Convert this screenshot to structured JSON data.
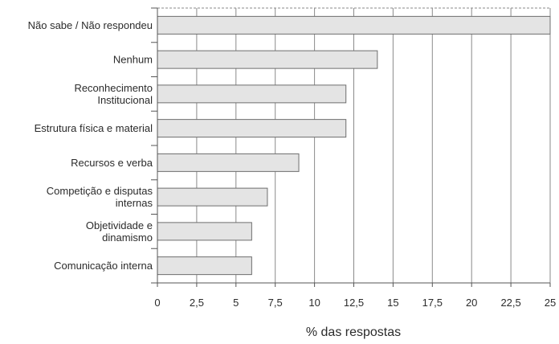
{
  "chart_data": {
    "type": "bar",
    "orientation": "horizontal",
    "categories": [
      [
        "Não sabe / Não respondeu"
      ],
      [
        "Nenhum"
      ],
      [
        "Reconhecimento",
        "Institucional"
      ],
      [
        "Estrutura física e material"
      ],
      [
        "Recursos e verba"
      ],
      [
        "Competição e disputas",
        "internas"
      ],
      [
        "Objetividade e",
        "dinamismo"
      ],
      [
        "Comunicação interna"
      ]
    ],
    "values": [
      25,
      14,
      12,
      12,
      9,
      7,
      6,
      6
    ],
    "xlim": [
      0,
      25
    ],
    "xticks": [
      0,
      2.5,
      5,
      7.5,
      10,
      12.5,
      15,
      17.5,
      20,
      22.5,
      25
    ],
    "xtick_labels": [
      "0",
      "2,5",
      "5",
      "7,5",
      "10",
      "12,5",
      "15",
      "17,5",
      "20",
      "22,5",
      "25"
    ],
    "xlabel": "% das respostas",
    "grid": "vertical",
    "bar_fill": "#e4e4e4",
    "bar_stroke": "#6e6e6e",
    "grid_color": "#8a8a8a"
  }
}
